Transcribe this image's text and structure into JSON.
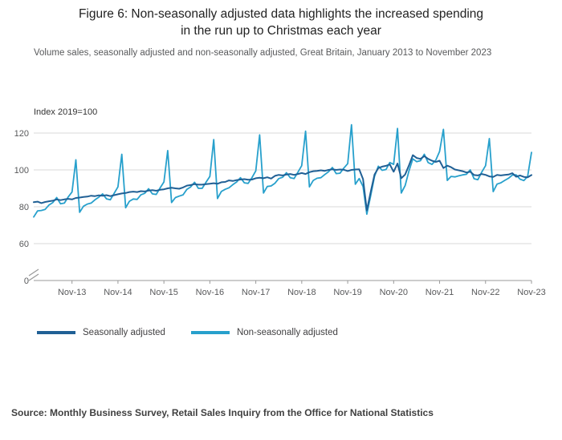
{
  "header": {
    "title_line1": "Figure 6: Non-seasonally adjusted data highlights the increased spending",
    "title_line2": "in the run up to Christmas each year",
    "subtitle": "Volume sales, seasonally adjusted and non-seasonally adjusted, Great Britain, January 2013 to November 2023"
  },
  "chart_data": {
    "type": "line",
    "title": "Figure 6: Non-seasonally adjusted data highlights the increased spending in the run up to Christmas each year",
    "subtitle": "Volume sales, seasonally adjusted and non-seasonally adjusted, Great Britain, January 2013 to November 2023",
    "y_axis_label": "Index 2019=100",
    "y_ticks": [
      0,
      60,
      80,
      100,
      120
    ],
    "y_axis_break": true,
    "plot_value_range": [
      60,
      130
    ],
    "x_range": "Jan-2013 to Nov-2023 (monthly)",
    "x_tick_labels": [
      "Nov-13",
      "Nov-14",
      "Nov-15",
      "Nov-16",
      "Nov-17",
      "Nov-18",
      "Nov-19",
      "Nov-20",
      "Nov-21",
      "Nov-22",
      "Nov-23"
    ],
    "x_tick_month_indices": [
      10,
      22,
      34,
      46,
      58,
      70,
      82,
      94,
      106,
      118,
      130
    ],
    "grid": "horizontal-only",
    "legend_position": "below",
    "series": [
      {
        "name": "Seasonally adjusted",
        "color": "#206095",
        "values": [
          82.5,
          82.8,
          82.0,
          82.6,
          83.0,
          83.3,
          84.0,
          83.6,
          84.0,
          84.3,
          84.0,
          84.8,
          85.0,
          85.3,
          85.5,
          86.0,
          85.8,
          86.2,
          86.0,
          86.3,
          85.8,
          86.3,
          86.8,
          87.2,
          87.5,
          88.0,
          88.2,
          88.0,
          88.5,
          88.3,
          88.8,
          89.0,
          88.7,
          89.2,
          89.5,
          90.0,
          90.3,
          90.0,
          89.8,
          90.5,
          91.5,
          91.8,
          92.3,
          92.0,
          92.0,
          92.3,
          92.5,
          92.8,
          92.5,
          93.3,
          93.5,
          94.3,
          94.0,
          94.5,
          94.8,
          95.0,
          94.7,
          94.8,
          95.5,
          95.8,
          95.5,
          96.0,
          95.3,
          96.8,
          97.3,
          97.0,
          97.5,
          97.8,
          97.3,
          97.8,
          98.3,
          97.8,
          98.8,
          99.3,
          99.5,
          99.8,
          99.5,
          100.0,
          100.3,
          100.0,
          100.2,
          100.1,
          99.4,
          100.0,
          100.2,
          100.3,
          95.0,
          78.0,
          88.0,
          97.5,
          101.0,
          101.8,
          102.2,
          103.0,
          99.0,
          103.5,
          95.5,
          97.5,
          102.5,
          108.0,
          106.5,
          106.0,
          107.5,
          106.0,
          105.0,
          104.3,
          105.0,
          101.0,
          102.3,
          101.5,
          100.2,
          99.8,
          99.3,
          98.6,
          99.0,
          97.2,
          97.0,
          97.8,
          97.3,
          96.5,
          96.2,
          97.3,
          97.0,
          97.3,
          97.5,
          98.2,
          96.3,
          97.0,
          96.2,
          96.0,
          97.2
        ]
      },
      {
        "name": "Non-seasonally adjusted",
        "color": "#27a0cc",
        "values": [
          74.5,
          77.8,
          78.0,
          78.6,
          81.0,
          82.3,
          85.0,
          81.6,
          82.0,
          85.3,
          88.0,
          105.5,
          77.0,
          80.3,
          81.5,
          82.0,
          83.8,
          85.2,
          87.0,
          84.3,
          83.8,
          87.3,
          90.8,
          108.5,
          79.5,
          83.0,
          84.2,
          84.0,
          86.5,
          87.3,
          89.8,
          87.0,
          86.7,
          90.2,
          93.5,
          110.5,
          82.3,
          85.0,
          85.8,
          86.5,
          89.5,
          90.8,
          93.3,
          90.0,
          90.0,
          93.3,
          96.5,
          116.5,
          84.5,
          88.3,
          89.5,
          90.3,
          92.0,
          93.5,
          95.8,
          93.0,
          92.7,
          95.8,
          99.5,
          119.0,
          87.5,
          91.0,
          91.3,
          92.8,
          95.3,
          96.0,
          98.5,
          95.8,
          95.3,
          98.8,
          102.3,
          121.0,
          90.8,
          94.3,
          95.5,
          95.8,
          97.5,
          99.0,
          101.3,
          98.0,
          98.2,
          101.0,
          103.4,
          124.5,
          92.2,
          95.3,
          91.0,
          76.0,
          86.0,
          96.5,
          102.0,
          99.8,
          100.2,
          104.0,
          103.0,
          122.5,
          87.5,
          91.5,
          99.5,
          106.0,
          104.5,
          105.0,
          108.5,
          104.0,
          103.0,
          105.3,
          110.0,
          122.0,
          94.3,
          96.5,
          96.2,
          96.8,
          97.3,
          97.6,
          100.0,
          95.2,
          94.7,
          98.8,
          102.3,
          117.0,
          88.2,
          92.3,
          93.0,
          94.3,
          95.5,
          97.2,
          97.3,
          95.0,
          94.2,
          96.5,
          109.5
        ]
      }
    ],
    "colors": {
      "gridline": "#d9d9d9",
      "axis": "#999999",
      "tick_text": "#58595b"
    }
  },
  "footer": {
    "source": "Source: Monthly Business Survey, Retail Sales Inquiry from the Office for National Statistics"
  }
}
